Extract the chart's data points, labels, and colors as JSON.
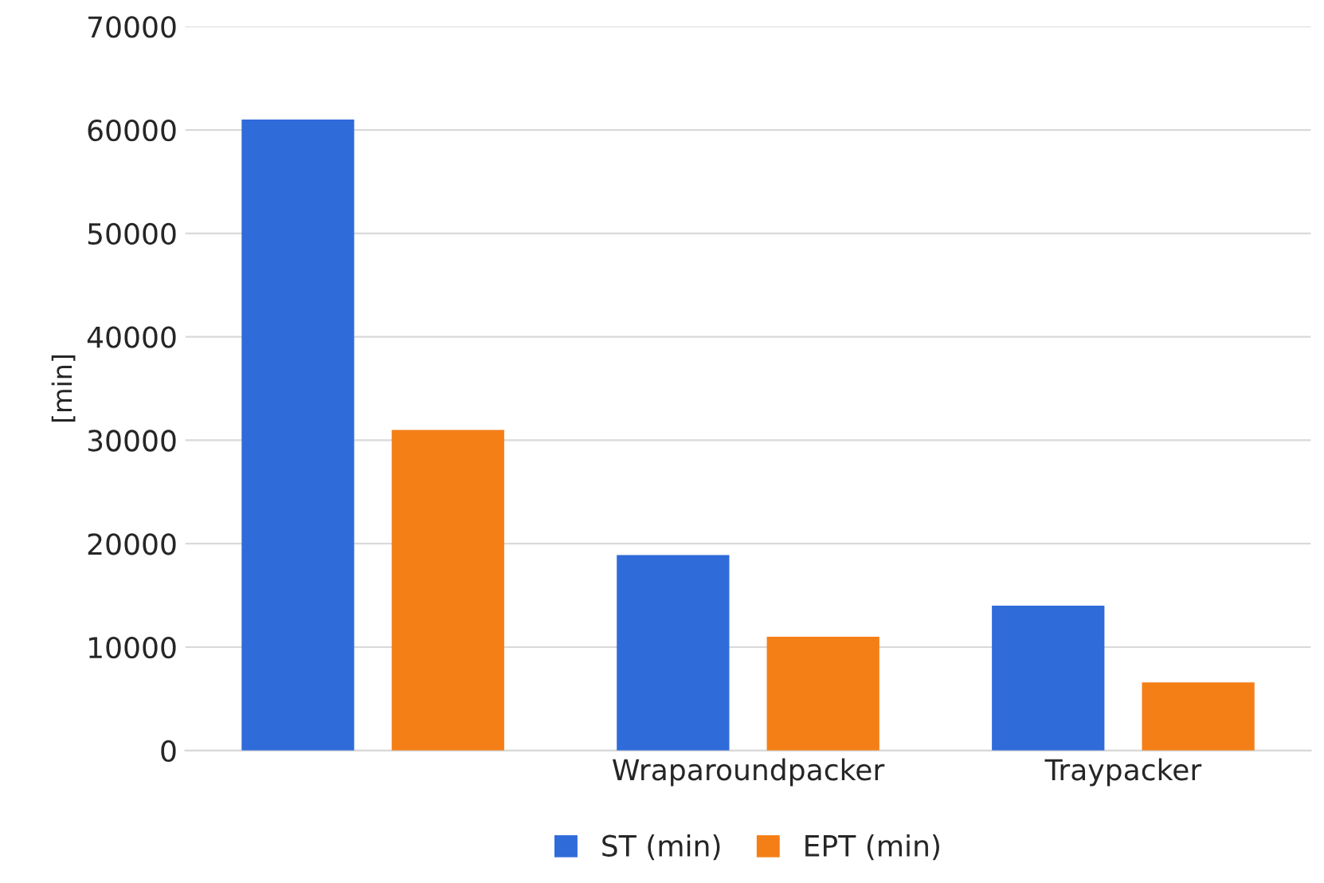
{
  "chart_data": {
    "type": "bar",
    "ylabel": "[min]",
    "categories": [
      null,
      "Wraparoundpacker",
      "Traypacker"
    ],
    "series": [
      {
        "name": "ST (min)",
        "color": "#2f6bd9",
        "values": [
          61000,
          18900,
          14000
        ]
      },
      {
        "name": "EPT (min)",
        "color": "#f57f17",
        "values": [
          31000,
          11000,
          6600
        ]
      }
    ],
    "ylim": [
      0,
      70000
    ],
    "yticks": [
      0,
      10000,
      20000,
      30000,
      40000,
      50000,
      60000,
      70000
    ],
    "grid": "y",
    "legend": "bottom"
  }
}
